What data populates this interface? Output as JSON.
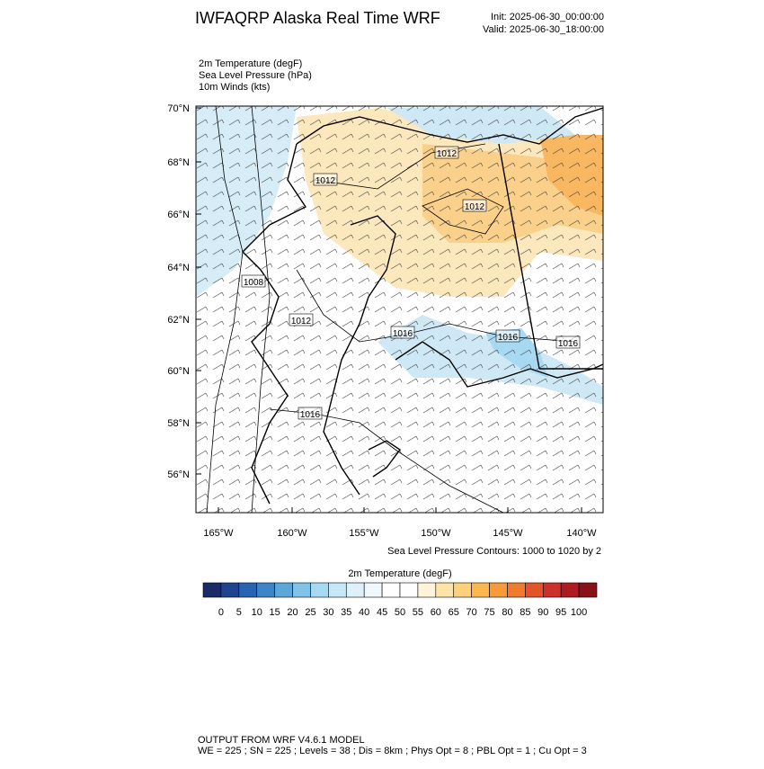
{
  "header": {
    "title": "IWFAQRP Alaska Real Time WRF",
    "init": "Init: 2025-06-30_00:00:00",
    "valid": "Valid: 2025-06-30_18:00:00"
  },
  "fields": [
    "2m Temperature   (degF)",
    "Sea Level Pressure   (hPa)",
    "10m Winds   (kts)"
  ],
  "map": {
    "lat_labels": [
      "70°N",
      "68°N",
      "66°N",
      "64°N",
      "62°N",
      "60°N",
      "58°N",
      "56°N"
    ],
    "lon_labels": [
      "165°W",
      "160°W",
      "155°W",
      "150°W",
      "145°W",
      "140°W"
    ],
    "contour_labels": [
      "1012",
      "1012",
      "1012",
      "1008",
      "1012",
      "1016",
      "1016",
      "1016",
      "1016"
    ],
    "contour_note": "Sea Level Pressure Contours: 1000 to 1020 by 2"
  },
  "colorbar": {
    "title": "2m Temperature  (degF)",
    "colors": [
      "#1b2a68",
      "#1f438f",
      "#2763b0",
      "#3b84c6",
      "#5ca6d9",
      "#80c2e8",
      "#a7d9f2",
      "#c6e7f6",
      "#def1f9",
      "#eff8fc",
      "#ffffff",
      "#ffffff",
      "#fff4d8",
      "#ffe4a9",
      "#fdd07b",
      "#fbb74f",
      "#f8993a",
      "#f07a2f",
      "#e35528",
      "#cb3126",
      "#ae1c22",
      "#871318"
    ],
    "labels": [
      0,
      5,
      10,
      15,
      20,
      25,
      30,
      35,
      40,
      45,
      50,
      55,
      60,
      65,
      70,
      75,
      80,
      85,
      90,
      95,
      100
    ]
  },
  "footer": {
    "line1": "OUTPUT FROM WRF V4.6.1 MODEL",
    "line2": "WE = 225 ; SN = 225 ; Levels = 38 ; Dis = 8km ; Phys Opt = 8 ; PBL Opt = 1 ; Cu Opt = 3"
  }
}
